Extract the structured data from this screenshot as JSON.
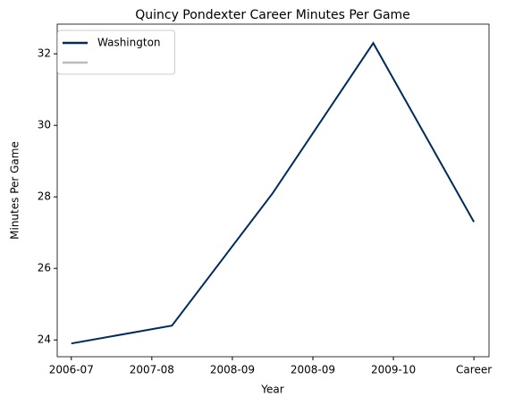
{
  "chart_data": {
    "type": "line",
    "title": "Quincy Pondexter Career Minutes Per Game",
    "x_label": "Year",
    "y_label": "Minutes Per Game",
    "x": [
      0,
      1,
      2,
      3,
      4
    ],
    "series": [
      {
        "name": "Washington",
        "color": "#002b5c",
        "values": [
          23.9,
          24.4,
          28.1,
          32.3,
          27.3
        ]
      }
    ],
    "xlim": [
      -0.14,
      4.15
    ],
    "xticks": [
      {
        "value": 0,
        "label": "2006-07"
      },
      {
        "value": 0.8,
        "label": "2007-08"
      },
      {
        "value": 1.6,
        "label": "2008-09"
      },
      {
        "value": 2.4,
        "label": "2008-09"
      },
      {
        "value": 3.2,
        "label": "2009-10"
      },
      {
        "value": 4,
        "label": "Career"
      }
    ],
    "ylim": [
      23.53,
      32.83
    ],
    "yticks": [
      24,
      26,
      28,
      30,
      32
    ],
    "grid": false,
    "legend": "upper left"
  }
}
